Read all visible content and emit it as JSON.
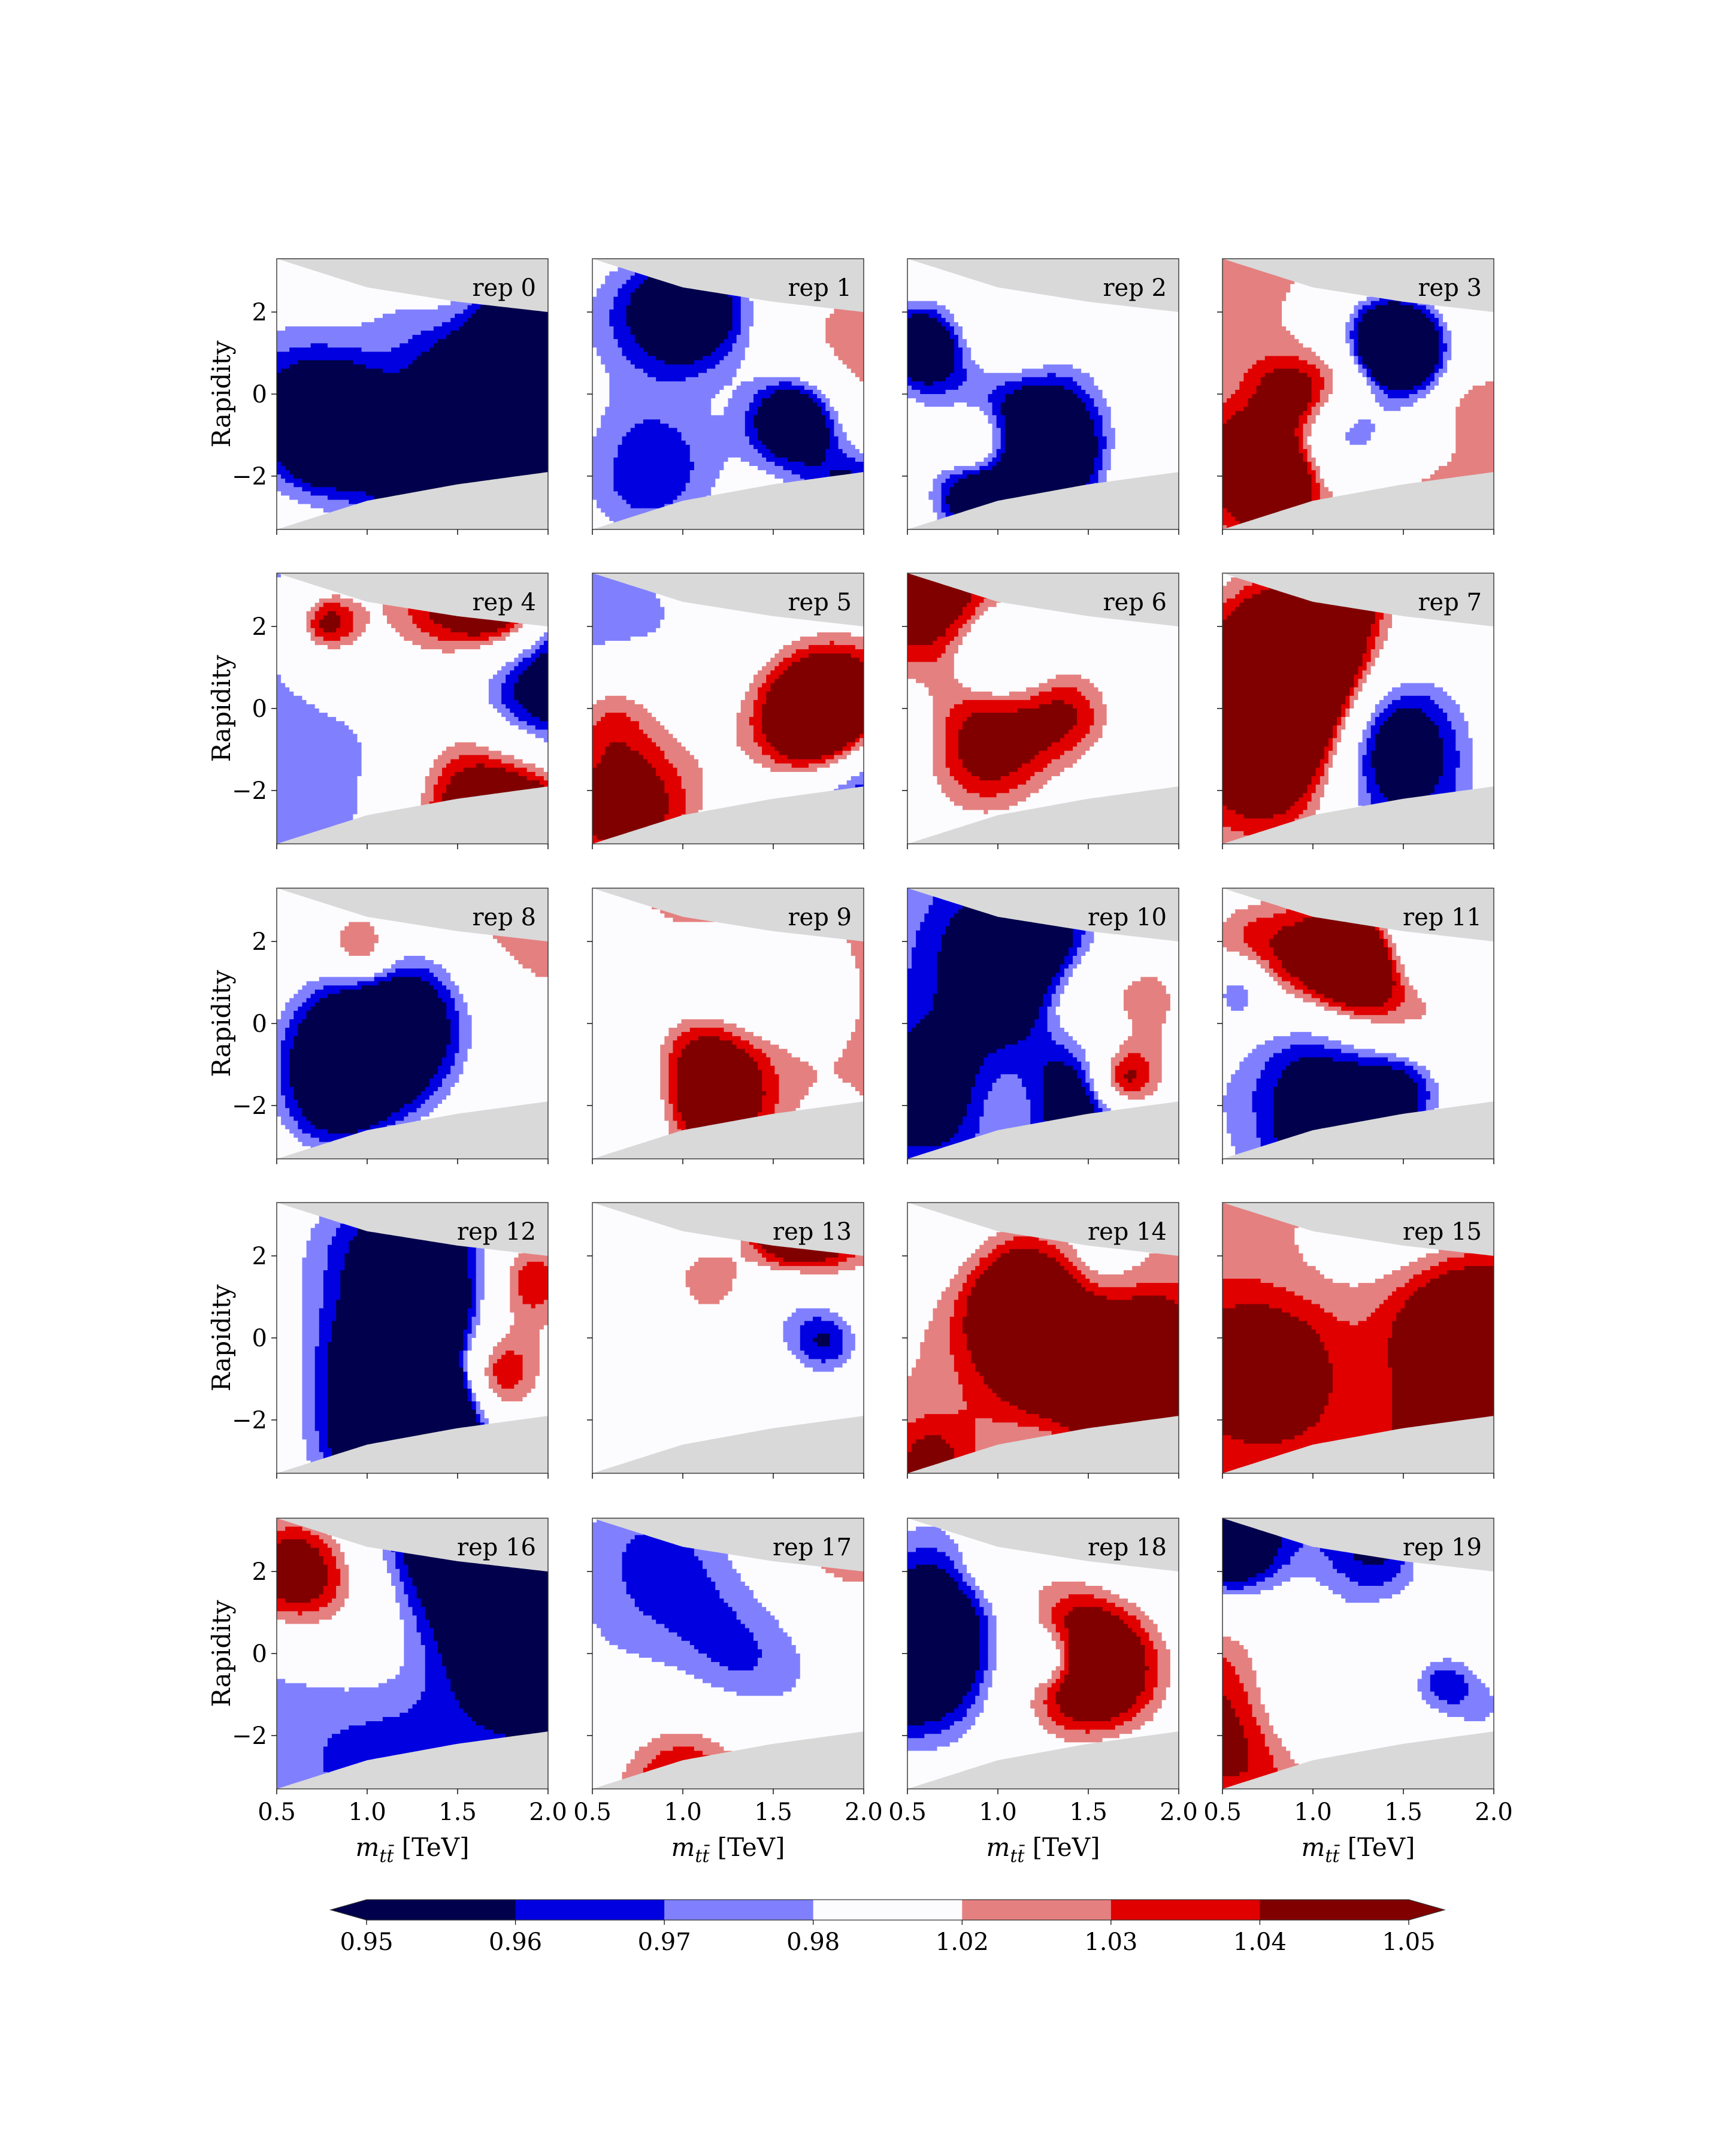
{
  "chart_data": {
    "type": "heatmap",
    "title": "",
    "layout": {
      "rows": 5,
      "cols": 4
    },
    "xlabel": "m_{tt̄} [TeV]",
    "xlabel_parts": {
      "m": "m",
      "sub": "tt̄",
      "unit": "[TeV]"
    },
    "ylabel": "Rapidity",
    "xlim": [
      0.5,
      2.0
    ],
    "ylim": [
      -3.3,
      3.3
    ],
    "xticks": [
      0.5,
      1.0,
      1.5,
      2.0
    ],
    "xtick_labels": [
      "0.5",
      "1.0",
      "1.5",
      "2.0"
    ],
    "yticks": [
      2,
      0,
      -2
    ],
    "ytick_labels": [
      "2",
      "0",
      "−2"
    ],
    "domain": {
      "description": "kinematic region shown; outside is masked (grey)",
      "upper_boundary": {
        "x": [
          0.5,
          1.0,
          1.5,
          2.0
        ],
        "y": [
          3.3,
          2.6,
          2.25,
          2.0
        ]
      },
      "lower_boundary": {
        "x": [
          0.5,
          1.0,
          1.5,
          2.0
        ],
        "y": [
          -3.3,
          -2.6,
          -2.2,
          -1.9
        ]
      }
    },
    "mask_color": "#d9d9d9",
    "panels": [
      {
        "label": "rep 0"
      },
      {
        "label": "rep 1"
      },
      {
        "label": "rep 2"
      },
      {
        "label": "rep 3"
      },
      {
        "label": "rep 4"
      },
      {
        "label": "rep 5"
      },
      {
        "label": "rep 6"
      },
      {
        "label": "rep 7"
      },
      {
        "label": "rep 8"
      },
      {
        "label": "rep 9"
      },
      {
        "label": "rep 10"
      },
      {
        "label": "rep 11"
      },
      {
        "label": "rep 12"
      },
      {
        "label": "rep 13"
      },
      {
        "label": "rep 14"
      },
      {
        "label": "rep 15"
      },
      {
        "label": "rep 16"
      },
      {
        "label": "rep 17"
      },
      {
        "label": "rep 18"
      },
      {
        "label": "rep 19"
      }
    ],
    "colorbar": {
      "levels": [
        0.95,
        0.96,
        0.97,
        0.98,
        1.02,
        1.03,
        1.04,
        1.05
      ],
      "tick_labels": [
        "0.95",
        "0.96",
        "0.97",
        "0.98",
        "1.02",
        "1.03",
        "1.04",
        "1.05"
      ],
      "colors": [
        "#00004c",
        "#0000e0",
        "#8080ff",
        "#fcfcff",
        "#e58080",
        "#e00000",
        "#800000"
      ],
      "under_color": "#00004c",
      "over_color": "#800000",
      "extend": "both"
    }
  }
}
